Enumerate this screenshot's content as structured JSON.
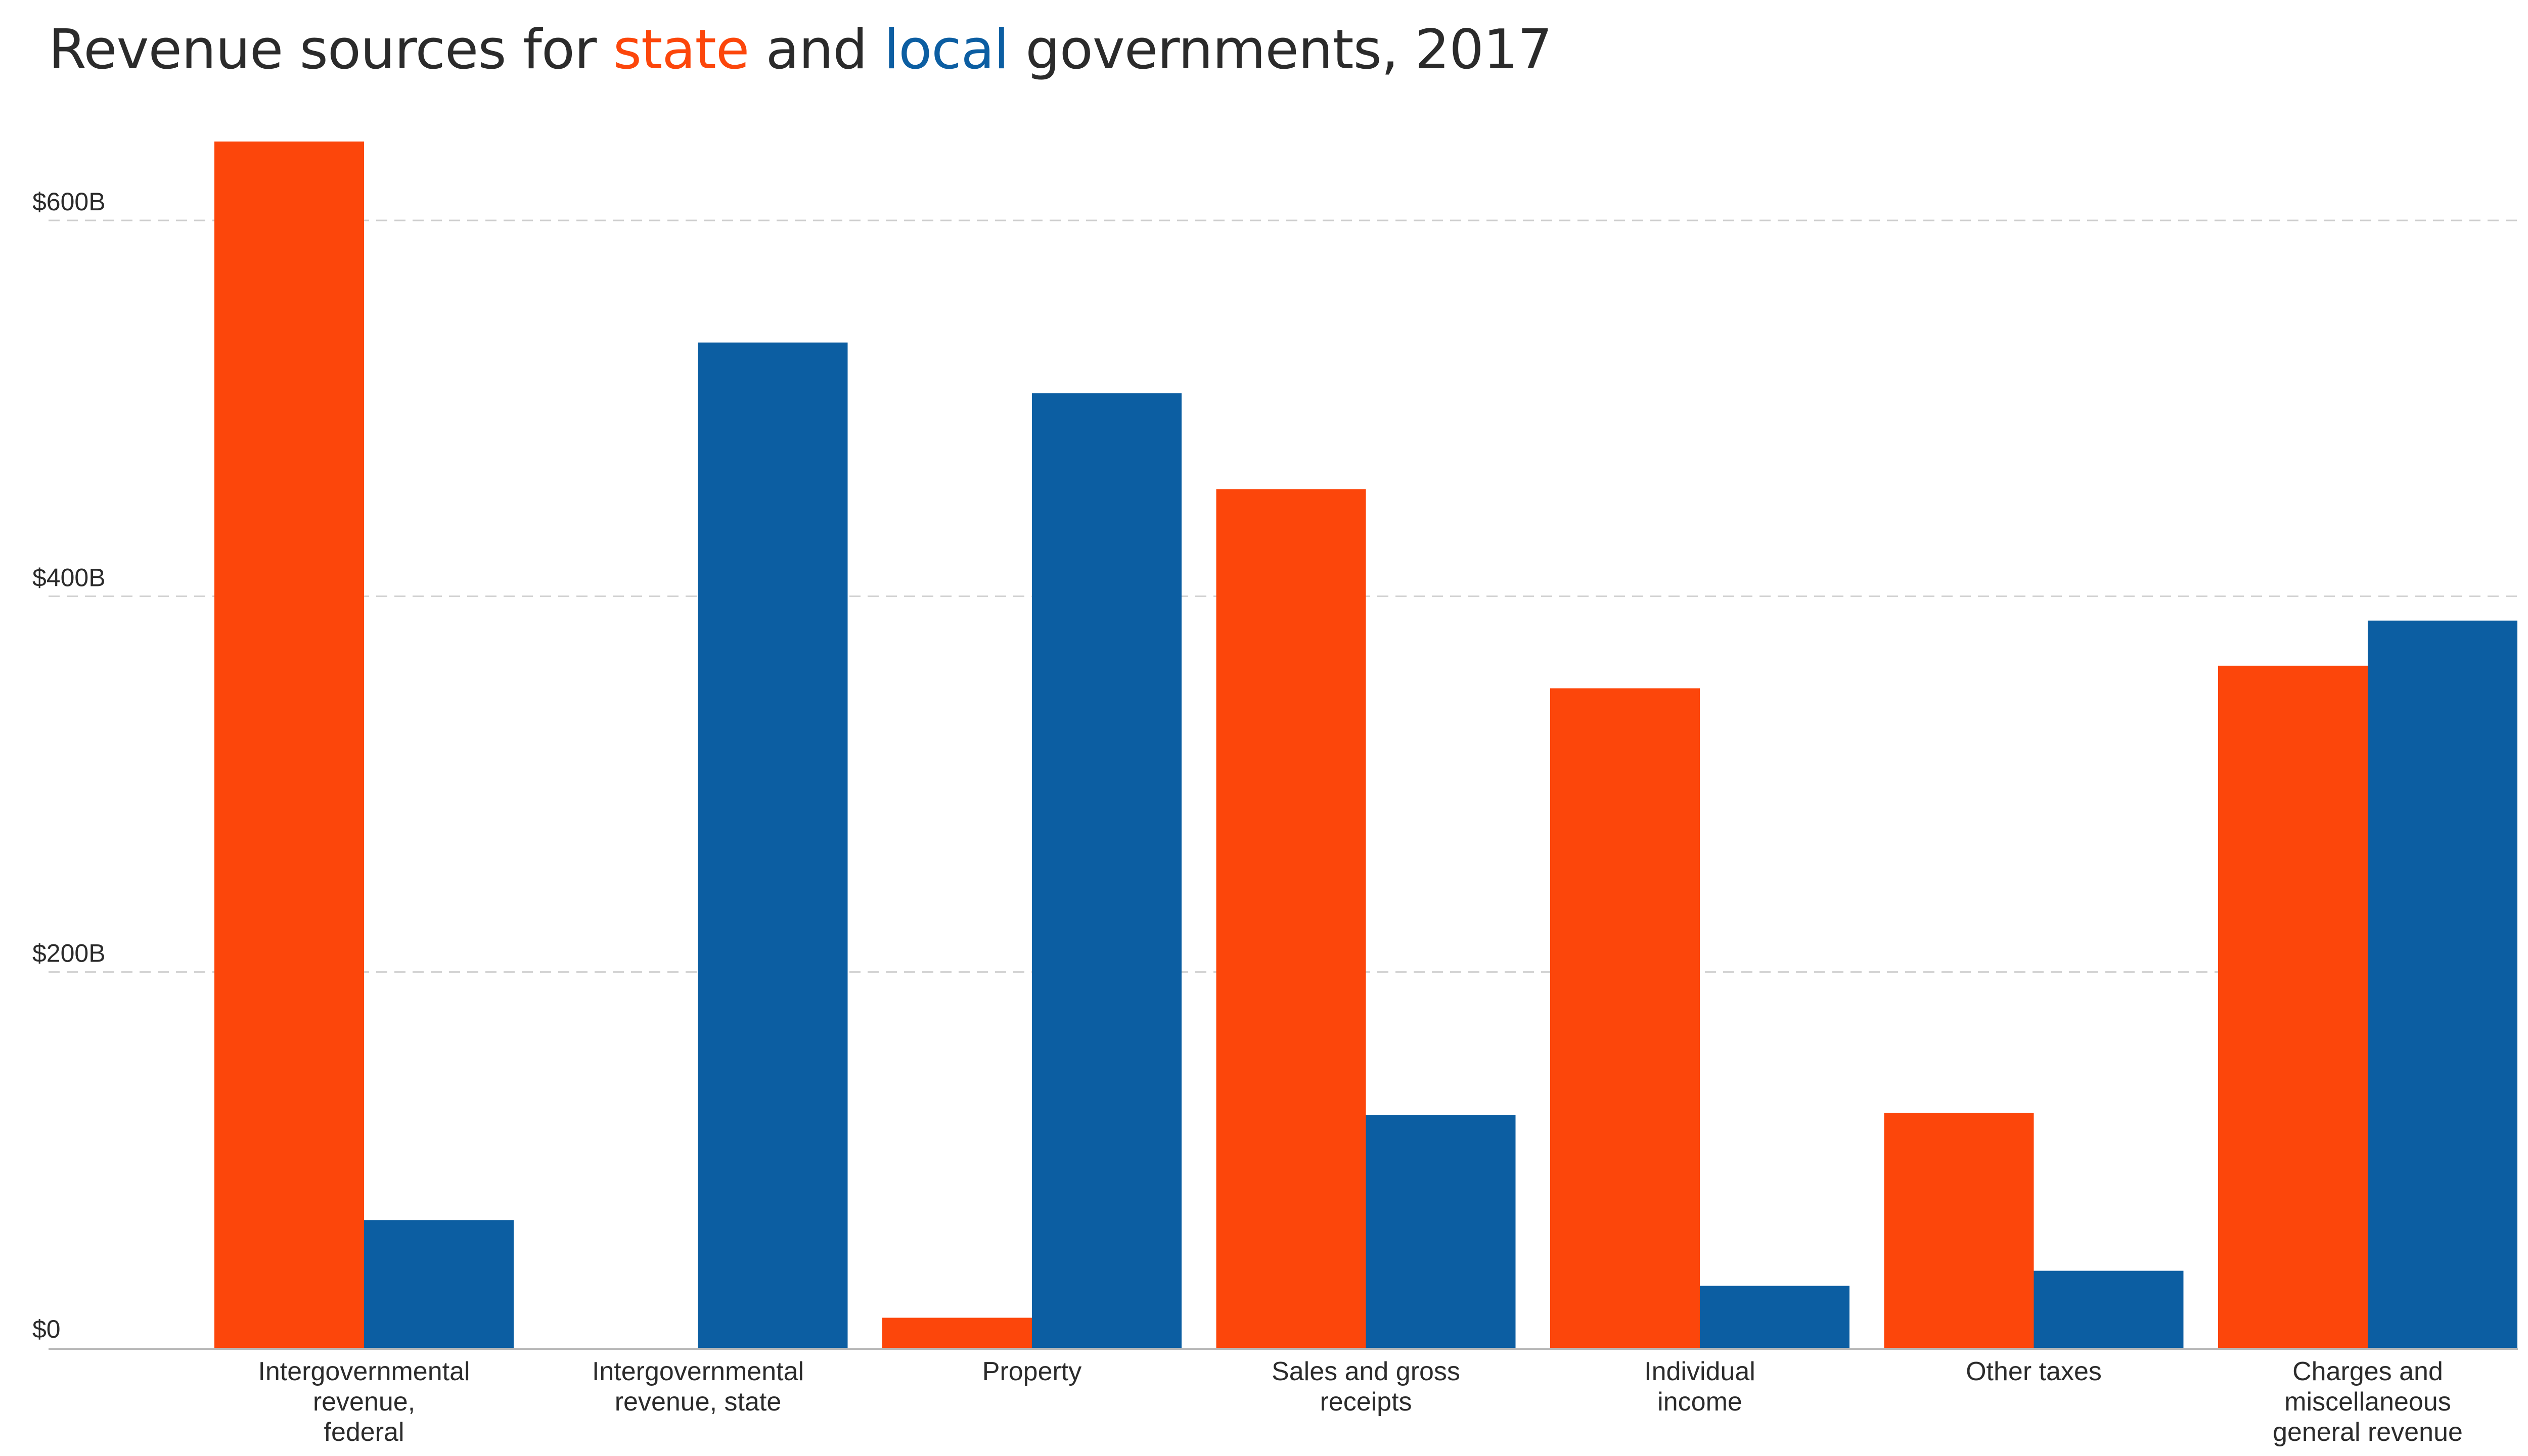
{
  "title": {
    "pre": "Revenue sources for ",
    "state_word": "state",
    "mid": " and ",
    "local_word": "local",
    "post": " governments, 2017"
  },
  "colors": {
    "state": "#fc460b",
    "local": "#0c5ea2",
    "grid": "#cfcfcf",
    "axis": "#b9b9b9",
    "text": "#2b2b2b"
  },
  "chart_data": {
    "type": "bar",
    "title": "Revenue sources for state and local governments, 2017",
    "xlabel": "",
    "ylabel": "",
    "ylim": [
      0,
      660
    ],
    "yticks": [
      {
        "value": 0,
        "label": "$0"
      },
      {
        "value": 200,
        "label": "$200B"
      },
      {
        "value": 400,
        "label": "$400B"
      },
      {
        "value": 600,
        "label": "$600B"
      }
    ],
    "grid": true,
    "legend": "none (series identified by colored words in title)",
    "categories": [
      [
        "Intergovernmental",
        "revenue,",
        "federal"
      ],
      [
        "Intergovernmental",
        "revenue, state"
      ],
      [
        "Property"
      ],
      [
        "Sales and gross",
        "receipts"
      ],
      [
        "Individual",
        "income"
      ],
      [
        "Other taxes"
      ],
      [
        "Charges and",
        "miscellaneous",
        "general revenue"
      ]
    ],
    "series": [
      {
        "name": "state",
        "color": "#fc460b",
        "values": [
          642,
          0,
          16,
          457,
          351,
          125,
          363
        ]
      },
      {
        "name": "local",
        "color": "#0c5ea2",
        "values": [
          68,
          535,
          508,
          124,
          33,
          41,
          387
        ]
      }
    ]
  }
}
